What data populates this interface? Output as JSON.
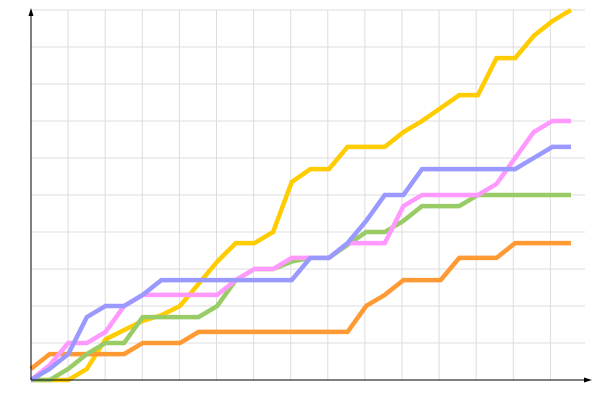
{
  "chart_data": {
    "type": "line",
    "title": "",
    "xlabel": "",
    "ylabel": "",
    "xlim": [
      0,
      29.5
    ],
    "ylim": [
      0,
      10
    ],
    "grid": true,
    "legend": "none",
    "x": [
      0,
      1,
      2,
      3,
      4,
      5,
      6,
      7,
      8,
      9,
      10,
      11,
      12,
      13,
      14,
      15,
      16,
      17,
      18,
      19,
      20,
      21,
      22,
      23,
      24,
      25,
      26,
      27,
      28,
      29
    ],
    "series": [
      {
        "color": "#ffcc00",
        "values": [
          0,
          0,
          0,
          0.3,
          1.1,
          1.35,
          1.6,
          1.75,
          2.0,
          2.6,
          3.2,
          3.7,
          3.7,
          4.0,
          5.35,
          5.7,
          5.7,
          6.3,
          6.3,
          6.3,
          6.7,
          7.0,
          7.35,
          7.7,
          7.7,
          8.7,
          8.7,
          9.3,
          9.7,
          10.0
        ]
      },
      {
        "color": "#ff9933",
        "values": [
          0.3,
          0.7,
          0.7,
          0.7,
          0.7,
          0.7,
          1.0,
          1.0,
          1.0,
          1.3,
          1.3,
          1.3,
          1.3,
          1.3,
          1.3,
          1.3,
          1.3,
          1.3,
          2.0,
          2.3,
          2.7,
          2.7,
          2.7,
          3.3,
          3.3,
          3.3,
          3.7,
          3.7,
          3.7,
          3.7
        ]
      },
      {
        "color": "#99cc66",
        "values": [
          0,
          0,
          0.3,
          0.7,
          1.0,
          1.0,
          1.7,
          1.7,
          1.7,
          1.7,
          2.0,
          2.7,
          3.0,
          3.0,
          3.2,
          3.3,
          3.3,
          3.65,
          4.0,
          4.0,
          4.3,
          4.7,
          4.7,
          4.7,
          5.0,
          5.0,
          5.0,
          5.0,
          5.0,
          5.0
        ]
      },
      {
        "color": "#ff99ff",
        "values": [
          0,
          0.4,
          1.0,
          1.0,
          1.3,
          2.0,
          2.3,
          2.3,
          2.3,
          2.3,
          2.3,
          2.7,
          3.0,
          3.0,
          3.3,
          3.3,
          3.3,
          3.7,
          3.7,
          3.7,
          4.7,
          5.0,
          5.0,
          5.0,
          5.0,
          5.3,
          6.0,
          6.7,
          7.0,
          7.0
        ]
      },
      {
        "color": "#9999ff",
        "values": [
          0,
          0.3,
          0.7,
          1.7,
          2.0,
          2.0,
          2.3,
          2.7,
          2.7,
          2.7,
          2.7,
          2.7,
          2.7,
          2.7,
          2.7,
          3.3,
          3.3,
          3.7,
          4.3,
          5.0,
          5.0,
          5.7,
          5.7,
          5.7,
          5.7,
          5.7,
          5.7,
          6.0,
          6.3,
          6.3
        ]
      }
    ]
  }
}
